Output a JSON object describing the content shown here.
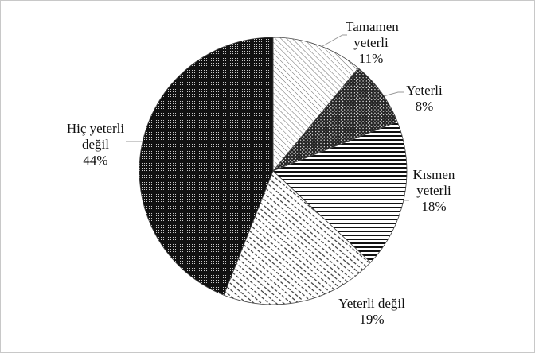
{
  "chart_data": {
    "type": "pie",
    "categories": [
      "Tamamen yeterli",
      "Yeterli",
      "Kısmen yeterli",
      "Yeterli değil",
      "Hiç yeterli değil"
    ],
    "values": [
      11,
      8,
      18,
      19,
      44
    ],
    "value_labels": [
      "11%",
      "8%",
      "18%",
      "19%",
      "44%"
    ]
  }
}
